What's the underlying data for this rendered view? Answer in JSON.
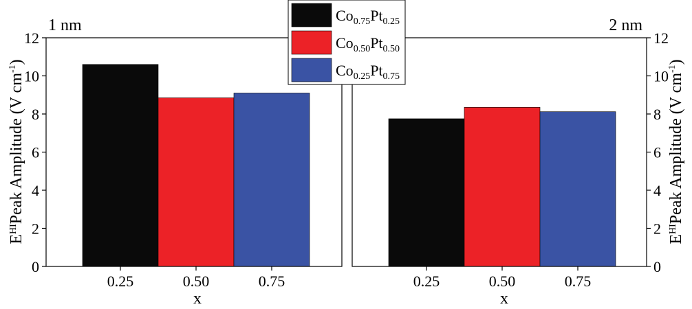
{
  "chart_data": [
    {
      "type": "bar",
      "panel_label": "1 nm",
      "categories": [
        "0.25",
        "0.50",
        "0.75"
      ],
      "series": [
        {
          "name": "Co0.75Pt0.25",
          "color": "#0a0a0a",
          "category": "0.25",
          "value": 10.6
        },
        {
          "name": "Co0.50Pt0.50",
          "color": "#ec2227",
          "category": "0.50",
          "value": 8.85
        },
        {
          "name": "Co0.25Pt0.75",
          "color": "#3a53a4",
          "category": "0.75",
          "value": 9.1
        }
      ],
      "xlabel": "x",
      "ylabel": "Peak Amplitude (V cm",
      "ylim": [
        0,
        12
      ],
      "yticks": [
        "0",
        "2",
        "4",
        "6",
        "8",
        "10",
        "12"
      ],
      "y_axis_side": "left"
    },
    {
      "type": "bar",
      "panel_label": "2 nm",
      "categories": [
        "0.25",
        "0.50",
        "0.75"
      ],
      "series": [
        {
          "name": "Co0.75Pt0.25",
          "color": "#0a0a0a",
          "category": "0.25",
          "value": 7.75
        },
        {
          "name": "Co0.50Pt0.50",
          "color": "#ec2227",
          "category": "0.50",
          "value": 8.35
        },
        {
          "name": "Co0.25Pt0.75",
          "color": "#3a53a4",
          "category": "0.75",
          "value": 8.12
        }
      ],
      "xlabel": "x",
      "ylabel": "Peak Amplitude (V cm",
      "ylim": [
        0,
        12
      ],
      "yticks": [
        "0",
        "2",
        "4",
        "6",
        "8",
        "10",
        "12"
      ],
      "y_axis_side": "right"
    }
  ],
  "ylabel_parts": {
    "E": "E",
    "HI": "HI",
    "main": "Peak Amplitude (V cm",
    "exp": "-1",
    "close": ")"
  },
  "legend": {
    "placement": "top-center",
    "entries": [
      {
        "base1": "Co",
        "sub1": "0.75",
        "base2": "Pt",
        "sub2": "0.25",
        "color": "#0a0a0a"
      },
      {
        "base1": "Co",
        "sub1": "0.50",
        "base2": "Pt",
        "sub2": "0.50",
        "color": "#ec2227"
      },
      {
        "base1": "Co",
        "sub1": "0.25",
        "base2": "Pt",
        "sub2": "0.75",
        "color": "#3a53a4"
      }
    ]
  }
}
